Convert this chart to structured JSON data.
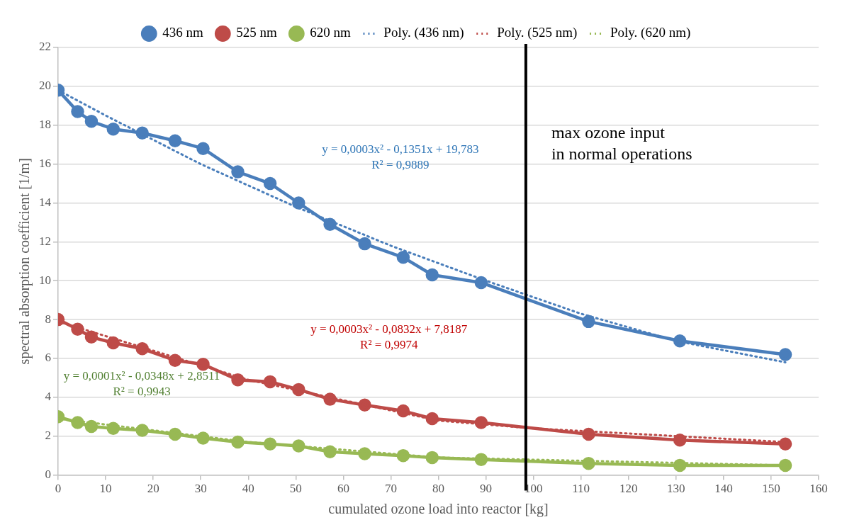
{
  "chart_data": {
    "type": "line",
    "xlabel": "cumulated ozone load into reactor [kg]",
    "ylabel": "spectral absorption coefficient [1/m]",
    "x": [
      0,
      4.1,
      7.0,
      11.6,
      17.7,
      24.6,
      30.5,
      37.8,
      44.6,
      50.6,
      57.2,
      64.5,
      72.6,
      78.7,
      89,
      111.6,
      130.8,
      153
    ],
    "xlim": [
      0,
      160
    ],
    "xticks": [
      0,
      10,
      20,
      30,
      40,
      50,
      60,
      70,
      80,
      90,
      100,
      110,
      120,
      130,
      140,
      150,
      160
    ],
    "ylim": [
      0,
      22
    ],
    "yticks": [
      0,
      2,
      4,
      6,
      8,
      10,
      12,
      14,
      16,
      18,
      20,
      22
    ],
    "grid": "y",
    "legend": "top",
    "marker": "circle",
    "line_style": "solid",
    "series": [
      {
        "name": "436 nm",
        "color": "#4a7ebb",
        "values": [
          19.8,
          18.7,
          18.2,
          17.8,
          17.6,
          17.2,
          16.8,
          15.6,
          15.0,
          14.0,
          12.9,
          11.9,
          11.2,
          10.3,
          9.9,
          7.9,
          6.9,
          6.2
        ]
      },
      {
        "name": "525 nm",
        "color": "#be4b48",
        "values": [
          8.0,
          7.5,
          7.1,
          6.8,
          6.5,
          5.9,
          5.7,
          4.9,
          4.8,
          4.4,
          3.9,
          3.6,
          3.3,
          2.9,
          2.7,
          2.1,
          1.8,
          1.6
        ]
      },
      {
        "name": "620 nm",
        "color": "#98b954",
        "values": [
          3.0,
          2.7,
          2.5,
          2.4,
          2.3,
          2.1,
          1.9,
          1.7,
          1.6,
          1.5,
          1.2,
          1.1,
          1.0,
          0.9,
          0.8,
          0.6,
          0.5,
          0.5
        ]
      },
      {
        "name": "Poly. (436 nm)",
        "type": "line",
        "marker": "none",
        "line_style": "dotted",
        "color": "#4a7ebb",
        "x": [
          0,
          10,
          30,
          50,
          70,
          90,
          110,
          130,
          153
        ],
        "values": [
          19.8,
          18.5,
          16.0,
          13.8,
          11.8,
          10.0,
          8.3,
          6.9,
          5.8
        ]
      },
      {
        "name": "Poly. (525 nm)",
        "type": "line",
        "marker": "none",
        "line_style": "dotted",
        "color": "#be4b48",
        "x": [
          0,
          40,
          80,
          100,
          153
        ],
        "values": [
          7.9,
          4.9,
          2.8,
          2.4,
          1.7
        ]
      },
      {
        "name": "Poly. (620 nm)",
        "type": "line",
        "marker": "none",
        "line_style": "dotted",
        "color": "#98b954",
        "x": [
          0,
          40,
          80,
          153
        ],
        "values": [
          2.9,
          1.7,
          0.9,
          0.5
        ]
      }
    ],
    "ref_lines": [
      {
        "axis": "x",
        "value": 98.4,
        "label": "max ozone input\nin normal operations",
        "color": "#000000"
      }
    ],
    "annotations": [
      "y = 0,0003x² - 0,1351x + 19,783\nR² = 0,9889",
      "y = 0,0003x² - 0,0832x + 7,8187\nR² = 0,9974",
      "y = 0,0001x² - 0,0348x + 2,8511\nR² = 0,9943"
    ]
  }
}
